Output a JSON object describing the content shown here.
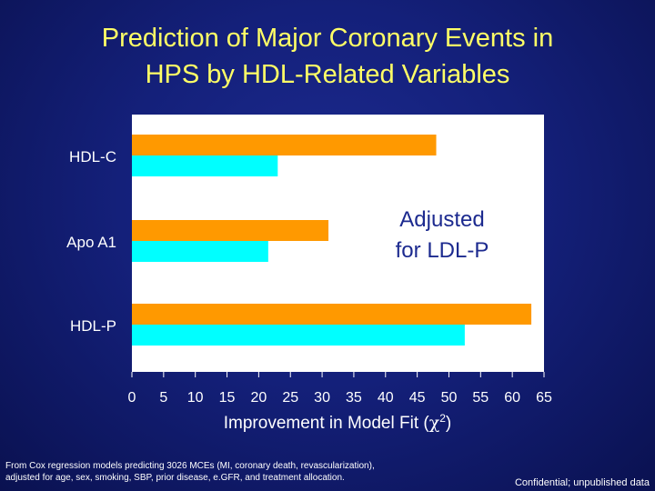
{
  "title_lines": [
    "Prediction of Major Coronary Events in",
    "HPS by HDL-Related Variables"
  ],
  "colors": {
    "title": "#ffff66",
    "series1": "#ff9900",
    "series2": "#00ffff"
  },
  "chart_data": {
    "type": "bar",
    "orientation": "horizontal",
    "categories": [
      "HDL-C",
      "Apo A1",
      "HDL-P"
    ],
    "series": [
      {
        "color": "#ff9900",
        "values": [
          48,
          31,
          63
        ]
      },
      {
        "color": "#00ffff",
        "values": [
          23,
          21.5,
          52.5
        ]
      }
    ],
    "xlabel_main": "Improvement in Model Fit (",
    "xlabel_chi": "χ",
    "xlabel_sup": "2",
    "xlabel_close": ")",
    "xlim": [
      0,
      65
    ],
    "xticks": [
      0,
      5,
      10,
      15,
      20,
      25,
      30,
      35,
      40,
      45,
      50,
      55,
      60,
      65
    ],
    "annotation_lines": [
      "Adjusted",
      "for LDL-P"
    ],
    "grid": false
  },
  "footnote_lines": [
    "From Cox regression models predicting 3026 MCEs (MI, coronary death, revascularization),",
    "adjusted for age, sex, smoking, SBP, prior disease, e.GFR, and treatment allocation."
  ],
  "confidential": "Confidential; unpublished data"
}
